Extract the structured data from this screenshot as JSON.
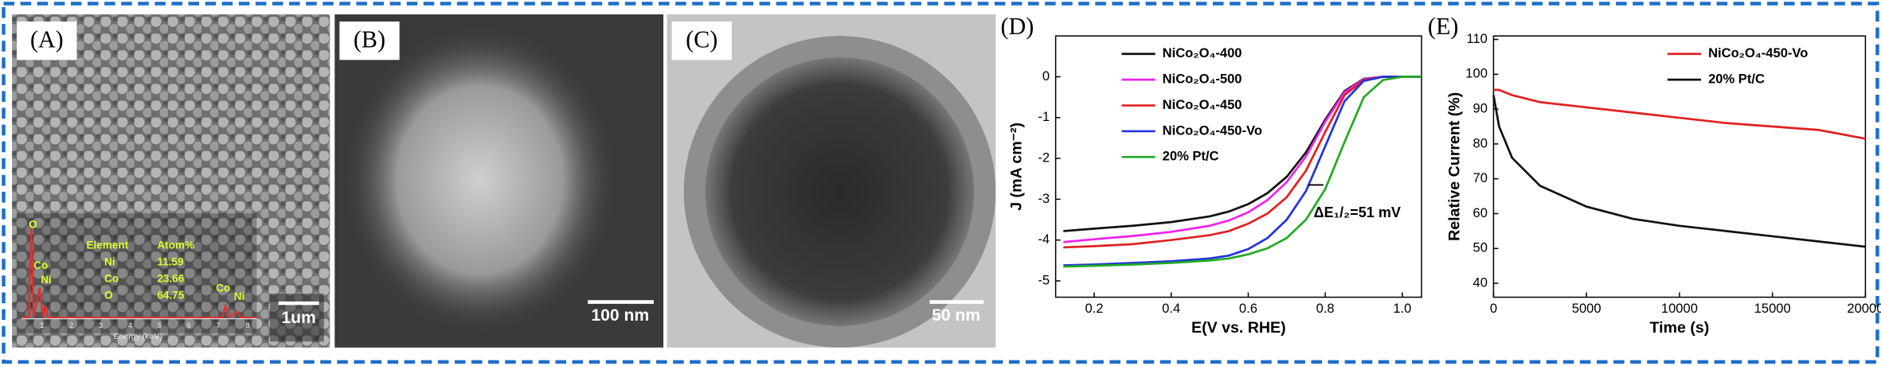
{
  "panels": {
    "a": {
      "label": "(A)",
      "scale_bar": "1um",
      "eds": {
        "peaks": [
          "O",
          "Co",
          "Ni",
          "Co",
          "Ni"
        ],
        "header": [
          "Element",
          "Atom%"
        ],
        "rows": [
          [
            "Ni",
            "11.59"
          ],
          [
            "Co",
            "23.66"
          ],
          [
            "O",
            "64.75"
          ]
        ],
        "axis_label": "Energy (keV)",
        "ticks": [
          "1",
          "2",
          "3",
          "4",
          "5",
          "6",
          "7",
          "8"
        ]
      }
    },
    "b": {
      "label": "(B)",
      "scale_bar": "100 nm"
    },
    "c": {
      "label": "(C)",
      "scale_bar": "50 nm"
    }
  },
  "chart_data": [
    {
      "type": "line",
      "label": "(D)",
      "xlabel": "E(V vs. RHE)",
      "ylabel": "J (mA cm⁻²)",
      "annotation": "ΔE₁/₂=51 mV",
      "legend": "upper left",
      "xlim": [
        0.1,
        1.05
      ],
      "ylim": [
        -5.4,
        1
      ],
      "xticks": [
        0.2,
        0.4,
        0.6,
        0.8,
        {
          "value": 1,
          "label": "1.0"
        }
      ],
      "yticks": [
        0,
        -1,
        -2,
        -3,
        -4,
        -5
      ],
      "x": [
        0.12,
        0.2,
        0.3,
        0.4,
        0.5,
        0.55,
        0.6,
        0.65,
        0.7,
        0.75,
        0.8,
        0.85,
        0.9,
        0.95,
        1.0,
        1.05
      ],
      "series": [
        {
          "name": "NiCo₂O₄-400",
          "color": "#111111",
          "values": [
            -3.78,
            -3.72,
            -3.65,
            -3.56,
            -3.42,
            -3.3,
            -3.12,
            -2.85,
            -2.45,
            -1.85,
            -1.05,
            -0.35,
            -0.05,
            0,
            0,
            0
          ]
        },
        {
          "name": "NiCo₂O₄-500",
          "color": "#ee22ee",
          "values": [
            -4.05,
            -3.98,
            -3.9,
            -3.8,
            -3.65,
            -3.52,
            -3.32,
            -3.02,
            -2.58,
            -1.95,
            -1.1,
            -0.38,
            -0.06,
            0,
            0,
            0
          ]
        },
        {
          "name": "NiCo₂O₄-450",
          "color": "#e02020",
          "values": [
            -4.18,
            -4.15,
            -4.1,
            -4.0,
            -3.88,
            -3.78,
            -3.6,
            -3.35,
            -2.95,
            -2.3,
            -1.35,
            -0.45,
            -0.08,
            0,
            0,
            0
          ]
        },
        {
          "name": "NiCo₂O₄-450-Vo",
          "color": "#2233dd",
          "values": [
            -4.62,
            -4.6,
            -4.56,
            -4.52,
            -4.45,
            -4.38,
            -4.22,
            -3.95,
            -3.5,
            -2.8,
            -1.7,
            -0.6,
            -0.1,
            0,
            0,
            0
          ]
        },
        {
          "name": "20% Pt/C",
          "color": "#22aa22",
          "values": [
            -4.65,
            -4.63,
            -4.6,
            -4.56,
            -4.5,
            -4.45,
            -4.35,
            -4.2,
            -3.95,
            -3.5,
            -2.75,
            -1.6,
            -0.5,
            -0.08,
            0,
            0
          ]
        }
      ]
    },
    {
      "type": "line",
      "label": "(E)",
      "xlabel": "Time (s)",
      "ylabel": "Relative Current (%)",
      "legend": "upper right",
      "xlim": [
        0,
        20000
      ],
      "ylim": [
        36,
        111
      ],
      "xticks": [
        0,
        5000,
        10000,
        15000,
        20000
      ],
      "yticks": [
        40,
        50,
        60,
        70,
        80,
        90,
        100,
        110
      ],
      "x": [
        0,
        300,
        1000,
        2500,
        5000,
        7500,
        10000,
        12500,
        15000,
        17500,
        20000
      ],
      "series": [
        {
          "name": "NiCo₂O₄-450-Vo",
          "color": "#e02020",
          "values": [
            95.5,
            95.5,
            94,
            92,
            90.5,
            89,
            87.5,
            86,
            85,
            84,
            81.5
          ]
        },
        {
          "name": "20% Pt/C",
          "color": "#111111",
          "values": [
            94,
            85,
            76,
            68,
            62,
            58.5,
            56.5,
            55,
            53.5,
            52,
            50.5
          ]
        }
      ]
    }
  ]
}
